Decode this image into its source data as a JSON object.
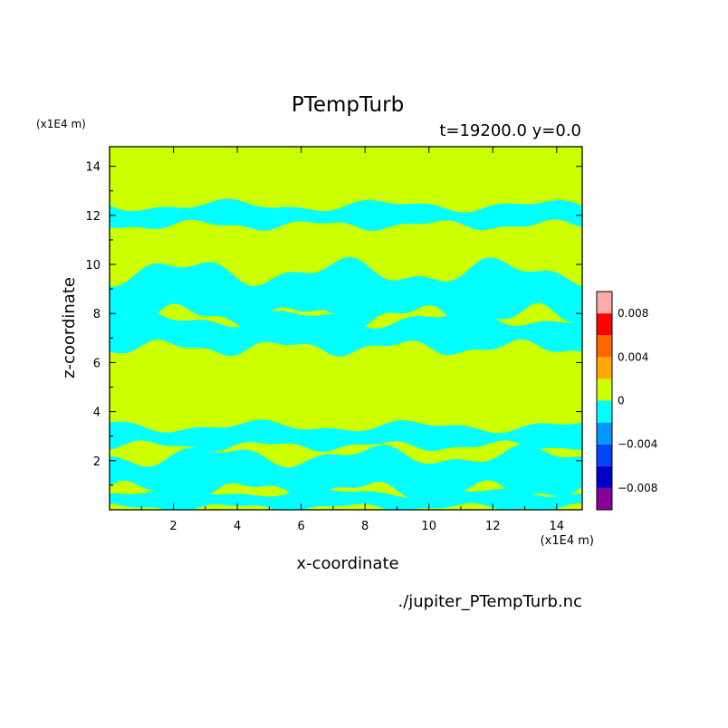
{
  "chart_data": {
    "type": "heatmap",
    "title": "PTempTurb",
    "subtitle": "t=19200.0 y=0.0",
    "xlabel": "x-coordinate",
    "ylabel": "z-coordinate",
    "x_units": "(x1E4 m)",
    "y_units": "(x1E4 m)",
    "source_file": "./jupiter_PTempTurb.nc",
    "xlim": [
      0,
      14.8
    ],
    "ylim": [
      0,
      14.8
    ],
    "x_ticks": [
      "2",
      "4",
      "6",
      "8",
      "10",
      "12",
      "14"
    ],
    "y_ticks": [
      "2",
      "4",
      "6",
      "8",
      "10",
      "12",
      "14"
    ],
    "background_level": 0,
    "background_color": "#ccff00",
    "anomaly_level": -0.002,
    "anomaly_color": "#00ffff",
    "colorbar": {
      "levels": [
        -0.01,
        -0.008,
        -0.006,
        -0.004,
        -0.002,
        0,
        0.002,
        0.004,
        0.006,
        0.008,
        0.01
      ],
      "colors": [
        "#880099",
        "#0000cc",
        "#0044ff",
        "#0099ff",
        "#00ffff",
        "#ccff00",
        "#ffaa00",
        "#ff6600",
        "#ff0000",
        "#ffaaaa"
      ],
      "labels": [
        "0.008",
        "0.004",
        "0",
        "−0.004",
        "−0.008"
      ]
    },
    "anomaly_bands": [
      {
        "z_center": 12.0,
        "z_width": 0.8
      },
      {
        "z_center": 8.8,
        "z_width": 1.8
      },
      {
        "z_center": 7.2,
        "z_width": 1.2
      },
      {
        "z_center": 3.0,
        "z_width": 0.8
      },
      {
        "z_center": 1.5,
        "z_width": 1.4
      },
      {
        "z_center": 0.4,
        "z_width": 0.6
      }
    ]
  }
}
